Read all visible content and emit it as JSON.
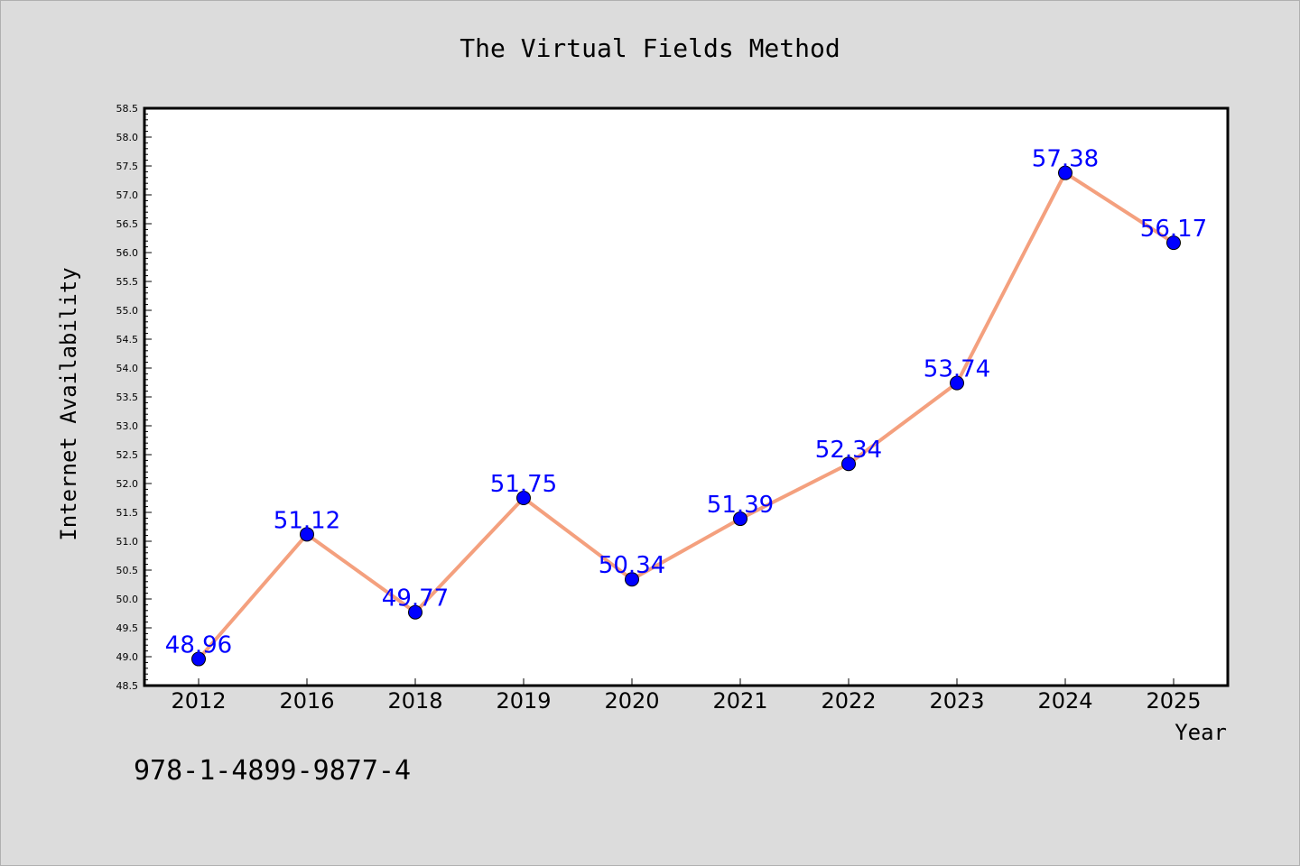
{
  "chart_data": {
    "type": "line",
    "title": "The Virtual Fields Method",
    "xlabel": "Year",
    "ylabel": "Internet Availability",
    "categories": [
      "2012",
      "2016",
      "2018",
      "2019",
      "2020",
      "2021",
      "2022",
      "2023",
      "2024",
      "2025"
    ],
    "values": [
      48.96,
      51.12,
      49.77,
      51.75,
      50.34,
      51.39,
      52.34,
      53.74,
      57.38,
      56.17
    ],
    "data_labels": [
      "48.96",
      "51.12",
      "49.77",
      "51.75",
      "50.34",
      "51.39",
      "52.34",
      "53.74",
      "57.38",
      "56.17"
    ],
    "ylim": [
      48.5,
      58.5
    ],
    "yticks": [
      "48.5",
      "49.0",
      "49.5",
      "50.0",
      "50.5",
      "51.0",
      "51.5",
      "52.0",
      "52.5",
      "53.0",
      "53.5",
      "54.0",
      "54.5",
      "55.0",
      "55.5",
      "56.0",
      "56.5",
      "57.0",
      "57.5",
      "58.0",
      "58.5"
    ],
    "grid": false,
    "legend": "none",
    "colors": {
      "line": "#f4a07e",
      "marker": "#0000ff",
      "label": "#0000ff",
      "background": "#dcdcdc",
      "plot_background": "#ffffff"
    }
  },
  "footer": {
    "isbn": "978-1-4899-9877-4"
  }
}
